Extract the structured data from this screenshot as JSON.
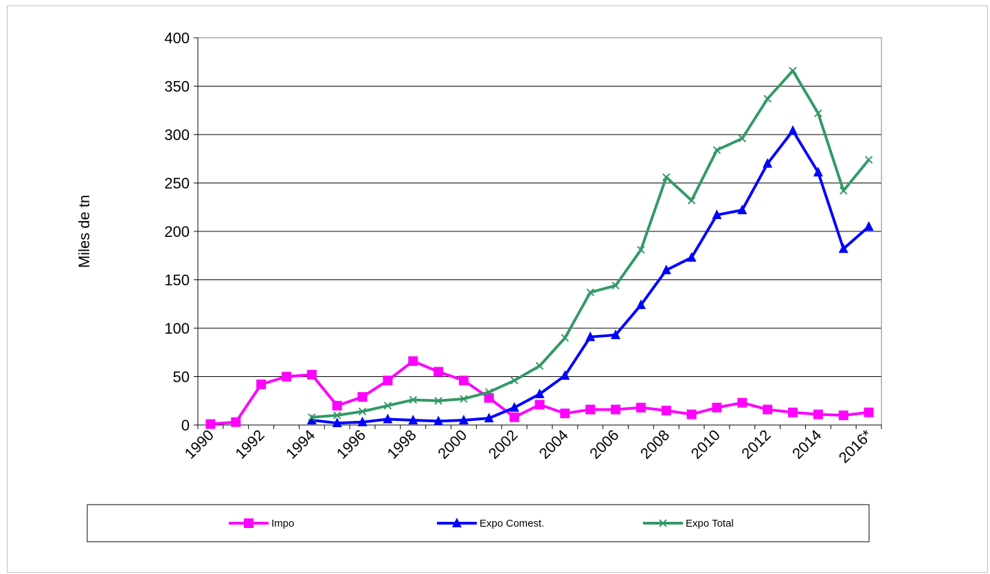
{
  "chart_data": {
    "type": "line",
    "title": "",
    "xlabel": "",
    "ylabel": "Miles de tn",
    "ylim": [
      0,
      400
    ],
    "yticks": [
      0,
      50,
      100,
      150,
      200,
      250,
      300,
      350,
      400
    ],
    "categories": [
      "1990",
      "1991",
      "1992",
      "1993",
      "1994",
      "1995",
      "1996",
      "1997",
      "1998",
      "1999",
      "2000",
      "2001",
      "2002",
      "2003",
      "2004",
      "2005",
      "2006",
      "2007",
      "2008",
      "2009",
      "2010",
      "2011",
      "2012",
      "2013",
      "2014",
      "2015",
      "2016*"
    ],
    "xtick_labels": [
      "1990",
      "1992",
      "1994",
      "1996",
      "1998",
      "2000",
      "2002",
      "2004",
      "2006",
      "2008",
      "2010",
      "2012",
      "2014",
      "2016*"
    ],
    "grid": "horizontal",
    "legend_position": "bottom",
    "series": [
      {
        "name": "Impo",
        "color": "#ff00ff",
        "marker": "square",
        "values": [
          1,
          3,
          42,
          50,
          52,
          20,
          29,
          46,
          66,
          55,
          46,
          28,
          8,
          21,
          12,
          16,
          16,
          18,
          15,
          11,
          18,
          23,
          16,
          13,
          11,
          10,
          13
        ]
      },
      {
        "name": "Expo Comest.",
        "color": "#0000ff",
        "marker": "triangle",
        "values": [
          null,
          null,
          null,
          null,
          5,
          2,
          3,
          6,
          5,
          4,
          5,
          7,
          18,
          32,
          51,
          91,
          93,
          124,
          160,
          173,
          217,
          222,
          270,
          304,
          261,
          182,
          205
        ]
      },
      {
        "name": "Expo Total",
        "color": "#339966",
        "marker": "x",
        "values": [
          null,
          null,
          null,
          null,
          8,
          10,
          14,
          20,
          26,
          25,
          27,
          34,
          46,
          61,
          90,
          137,
          144,
          181,
          256,
          232,
          284,
          296,
          337,
          366,
          322,
          242,
          274
        ]
      }
    ]
  }
}
